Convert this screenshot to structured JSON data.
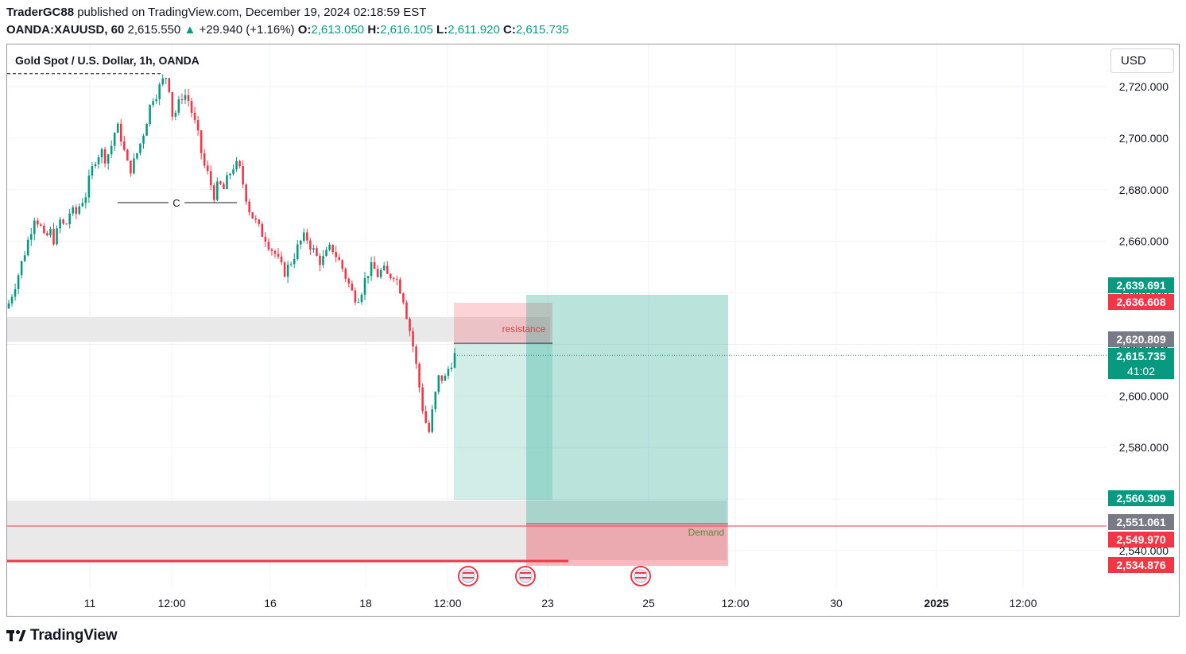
{
  "header": {
    "author": "TraderGC88",
    "published_text": "published on TradingView.com, December 19, 2024 02:18:59 EST",
    "symbol": "OANDA:XAUUSD, 60",
    "price": "2,615.550",
    "change": "+29.940 (+1.16%)",
    "o_label": "O:",
    "o_value": "2,613.050",
    "h_label": "H:",
    "h_value": "2,616.105",
    "l_label": "L:",
    "l_value": "2,611.920",
    "c_label": "C:",
    "c_value": "2,615.735"
  },
  "chart_title": "Gold Spot / U.S. Dollar, 1h, OANDA",
  "currency_button": "USD",
  "price_tags": [
    {
      "text": "2,639.691",
      "color": "#089981"
    },
    {
      "text": "2,636.608",
      "color": "#f23645"
    },
    {
      "text": "2,620.809",
      "color": "#787b86"
    },
    {
      "text": "2,615.735",
      "color": "#089981"
    },
    {
      "text": "41:02",
      "color": "#089981"
    },
    {
      "text": "2,560.309",
      "color": "#089981"
    },
    {
      "text": "2,551.061",
      "color": "#787b86"
    },
    {
      "text": "2,549.970",
      "color": "#f23645"
    },
    {
      "text": "2,534.876",
      "color": "#f23645"
    }
  ],
  "annotations": {
    "choch_label": "C",
    "resistance_label": "resistance",
    "demand_label": "Demand"
  },
  "footer": {
    "brand": "TradingView"
  },
  "colors": {
    "up": "#089981",
    "down": "#f23645",
    "grid": "#f0f3fa",
    "zone": "#e9e9e9"
  },
  "chart_data": {
    "type": "candlestick",
    "symbol": "XAUUSD",
    "timeframe": "1h",
    "y_ticks": [
      2720,
      2700,
      2680,
      2660,
      2640,
      2620,
      2600,
      2580,
      2560,
      2540
    ],
    "x_ticks": [
      "11",
      "12:00",
      "16",
      "18",
      "12:00",
      "23",
      "25",
      "12:00",
      "30",
      "2025",
      "12:00"
    ],
    "x_tick_bold": [
      false,
      false,
      false,
      false,
      false,
      false,
      false,
      false,
      false,
      true,
      false
    ],
    "ylim": [
      2527,
      2735
    ],
    "close_path": [
      2636,
      2642,
      2648,
      2655,
      2662,
      2670,
      2667,
      2660,
      2664,
      2660,
      2668,
      2665,
      2672,
      2670,
      2675,
      2678,
      2686,
      2693,
      2695,
      2692,
      2697,
      2705,
      2700,
      2690,
      2688,
      2694,
      2700,
      2708,
      2716,
      2718,
      2722,
      2725,
      2708,
      2712,
      2718,
      2715,
      2708,
      2700,
      2690,
      2685,
      2678,
      2682,
      2680,
      2686,
      2690,
      2688,
      2680,
      2672,
      2668,
      2664,
      2662,
      2658,
      2655,
      2650,
      2648,
      2652,
      2656,
      2660,
      2662,
      2658,
      2654,
      2652,
      2655,
      2658,
      2654,
      2650,
      2645,
      2640,
      2638,
      2642,
      2648,
      2650,
      2647,
      2649,
      2646,
      2648,
      2644,
      2638,
      2628,
      2618,
      2605,
      2592,
      2586,
      2598,
      2608,
      2606,
      2612,
      2615.7
    ],
    "last_price": 2615.735,
    "dashed_high": 2725,
    "choch_level": 2675
  }
}
